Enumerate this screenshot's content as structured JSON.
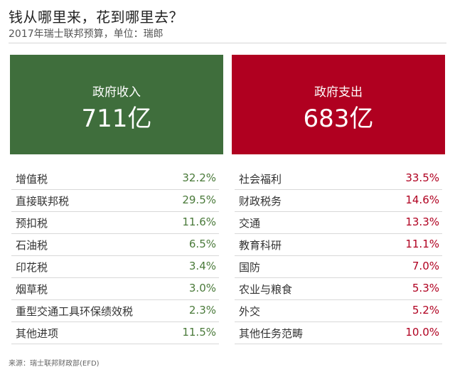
{
  "header": {
    "title": "钱从哪里来，花到哪里去？",
    "subtitle": "2017年瑞士联邦预算，单位：瑞郎"
  },
  "colors": {
    "revenue": "#3f6e3c",
    "expenditure": "#b00020"
  },
  "chart_data": {
    "type": "table",
    "title": "钱从哪里来，花到哪里去？",
    "subtitle": "2017年瑞士联邦预算，单位：瑞郎",
    "revenue": {
      "label": "政府收入",
      "total": "711亿",
      "items": [
        {
          "name": "增值税",
          "value": "32.2%"
        },
        {
          "name": "直接联邦税",
          "value": "29.5%"
        },
        {
          "name": "预扣税",
          "value": "11.6%"
        },
        {
          "name": "石油税",
          "value": "6.5%"
        },
        {
          "name": "印花税",
          "value": "3.4%"
        },
        {
          "name": "烟草税",
          "value": "3.0%"
        },
        {
          "name": "重型交通工具环保绩效税",
          "value": "2.3%"
        },
        {
          "name": "其他进项",
          "value": "11.5%"
        }
      ]
    },
    "expenditure": {
      "label": "政府支出",
      "total": "683亿",
      "items": [
        {
          "name": "社会福利",
          "value": "33.5%"
        },
        {
          "name": "财政税务",
          "value": "14.6%"
        },
        {
          "name": "交通",
          "value": "13.3%"
        },
        {
          "name": "教育科研",
          "value": "11.1%"
        },
        {
          "name": "国防",
          "value": "7.0%"
        },
        {
          "name": "农业与粮食",
          "value": "5.3%"
        },
        {
          "name": "外交",
          "value": "5.2%"
        },
        {
          "name": "其他任务范畴",
          "value": "10.0%"
        }
      ]
    }
  },
  "footer": {
    "source": "来源：瑞士联邦财政部(EFD)"
  }
}
